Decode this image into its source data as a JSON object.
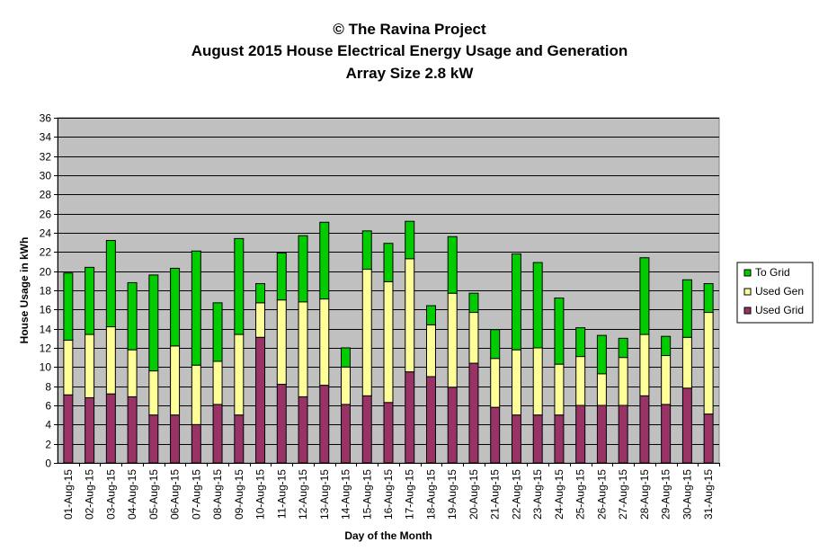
{
  "colors": {
    "used_grid": "#993366",
    "used_gen": "#FFFF99",
    "to_grid": "#00CC00",
    "plot_bg": "#C0C0C0"
  },
  "chart_data": {
    "type": "bar",
    "stacked": true,
    "title": "© The Ravina Project",
    "subtitle": "August 2015 House Electrical Energy Usage and Generation",
    "subtitle2": "Array Size 2.8 kW",
    "xlabel": "Day of the Month",
    "ylabel": "House Usage in kWh",
    "ylim": [
      0,
      36
    ],
    "ytick_step": 2,
    "grid": true,
    "legend_position": "right",
    "categories": [
      "01-Aug-15",
      "02-Aug-15",
      "03-Aug-15",
      "04-Aug-15",
      "05-Aug-15",
      "06-Aug-15",
      "07-Aug-15",
      "08-Aug-15",
      "09-Aug-15",
      "10-Aug-15",
      "11-Aug-15",
      "12-Aug-15",
      "13-Aug-15",
      "14-Aug-15",
      "15-Aug-15",
      "16-Aug-15",
      "17-Aug-15",
      "18-Aug-15",
      "19-Aug-15",
      "20-Aug-15",
      "21-Aug-15",
      "22-Aug-15",
      "23-Aug-15",
      "24-Aug-15",
      "25-Aug-15",
      "26-Aug-15",
      "27-Aug-15",
      "28-Aug-15",
      "29-Aug-15",
      "30-Aug-15",
      "31-Aug-15"
    ],
    "series": [
      {
        "name": "Used Grid",
        "values": [
          7.1,
          6.8,
          7.2,
          6.9,
          5.0,
          5.0,
          4.0,
          6.1,
          5.0,
          13.1,
          8.2,
          6.9,
          8.1,
          6.1,
          7.0,
          6.3,
          9.5,
          9.0,
          7.9,
          10.4,
          5.8,
          5.0,
          5.0,
          5.0,
          6.0,
          6.0,
          6.0,
          7.0,
          6.1,
          7.8,
          5.1
        ]
      },
      {
        "name": "Used Gen",
        "values": [
          5.7,
          6.6,
          7.0,
          4.9,
          4.6,
          7.2,
          6.2,
          4.5,
          8.4,
          3.6,
          8.8,
          9.9,
          9.0,
          3.9,
          13.2,
          12.6,
          11.8,
          5.4,
          9.8,
          5.3,
          5.1,
          6.8,
          7.0,
          5.3,
          5.1,
          3.3,
          5.0,
          6.4,
          5.1,
          5.3,
          10.6
        ]
      },
      {
        "name": "To Grid",
        "values": [
          7.0,
          7.0,
          9.0,
          7.0,
          10.0,
          8.1,
          11.9,
          6.1,
          10.0,
          2.0,
          4.9,
          6.9,
          8.0,
          2.0,
          4.0,
          4.0,
          3.9,
          2.0,
          5.9,
          2.0,
          3.0,
          10.0,
          8.9,
          6.9,
          3.0,
          4.0,
          2.0,
          8.0,
          2.0,
          6.0,
          3.0
        ]
      }
    ]
  }
}
